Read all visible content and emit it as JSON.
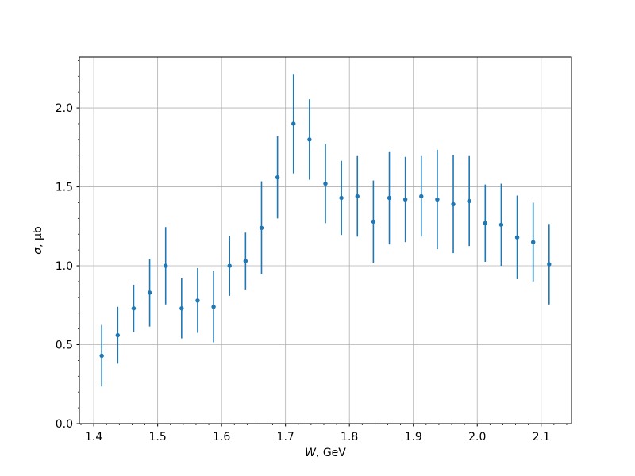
{
  "chart_data": {
    "type": "scatter",
    "subtype": "errorbar",
    "title": "",
    "xlabel": "W, GeV",
    "ylabel": "σ, μb",
    "xlabel_italic": "W",
    "xlabel_rest": ", GeV",
    "ylabel_italic": "σ",
    "ylabel_rest": ", μb",
    "xlim": [
      1.3775,
      2.1475
    ],
    "ylim": [
      0,
      2.322
    ],
    "x_ticks": [
      1.4,
      1.5,
      1.6,
      1.7,
      1.8,
      1.9,
      2.0,
      2.1
    ],
    "x_tick_labels": [
      "1.4",
      "1.5",
      "1.6",
      "1.7",
      "1.8",
      "1.9",
      "2.0",
      "2.1"
    ],
    "y_ticks": [
      0.0,
      0.5,
      1.0,
      1.5,
      2.0
    ],
    "y_tick_labels": [
      "0.0",
      "0.5",
      "1.0",
      "1.5",
      "2.0"
    ],
    "x_minor_step": 0.02,
    "y_minor_step": 0.1,
    "grid": true,
    "legend": "none",
    "marker": "circle",
    "color": "#1f77b4",
    "grid_color": "#b0b0b0",
    "spine_color": "#000000",
    "background": "#ffffff",
    "x": [
      1.4125,
      1.4375,
      1.4625,
      1.4875,
      1.5125,
      1.5375,
      1.5625,
      1.5875,
      1.6125,
      1.6375,
      1.6625,
      1.6875,
      1.7125,
      1.7375,
      1.7625,
      1.7875,
      1.8125,
      1.8375,
      1.8625,
      1.8875,
      1.9125,
      1.9375,
      1.9625,
      1.9875,
      2.0125,
      2.0375,
      2.0625,
      2.0875,
      2.1125
    ],
    "y": [
      0.43,
      0.56,
      0.73,
      0.83,
      1.0,
      0.73,
      0.78,
      0.74,
      1.0,
      1.03,
      1.24,
      1.56,
      1.9,
      1.8,
      1.52,
      1.43,
      1.44,
      1.28,
      1.43,
      1.42,
      1.44,
      1.42,
      1.39,
      1.41,
      1.27,
      1.26,
      1.18,
      1.15,
      1.01
    ],
    "yerr": [
      0.195,
      0.18,
      0.15,
      0.215,
      0.245,
      0.19,
      0.205,
      0.225,
      0.19,
      0.18,
      0.295,
      0.26,
      0.315,
      0.255,
      0.25,
      0.235,
      0.255,
      0.26,
      0.295,
      0.27,
      0.255,
      0.315,
      0.31,
      0.285,
      0.245,
      0.26,
      0.265,
      0.25,
      0.255
    ]
  }
}
